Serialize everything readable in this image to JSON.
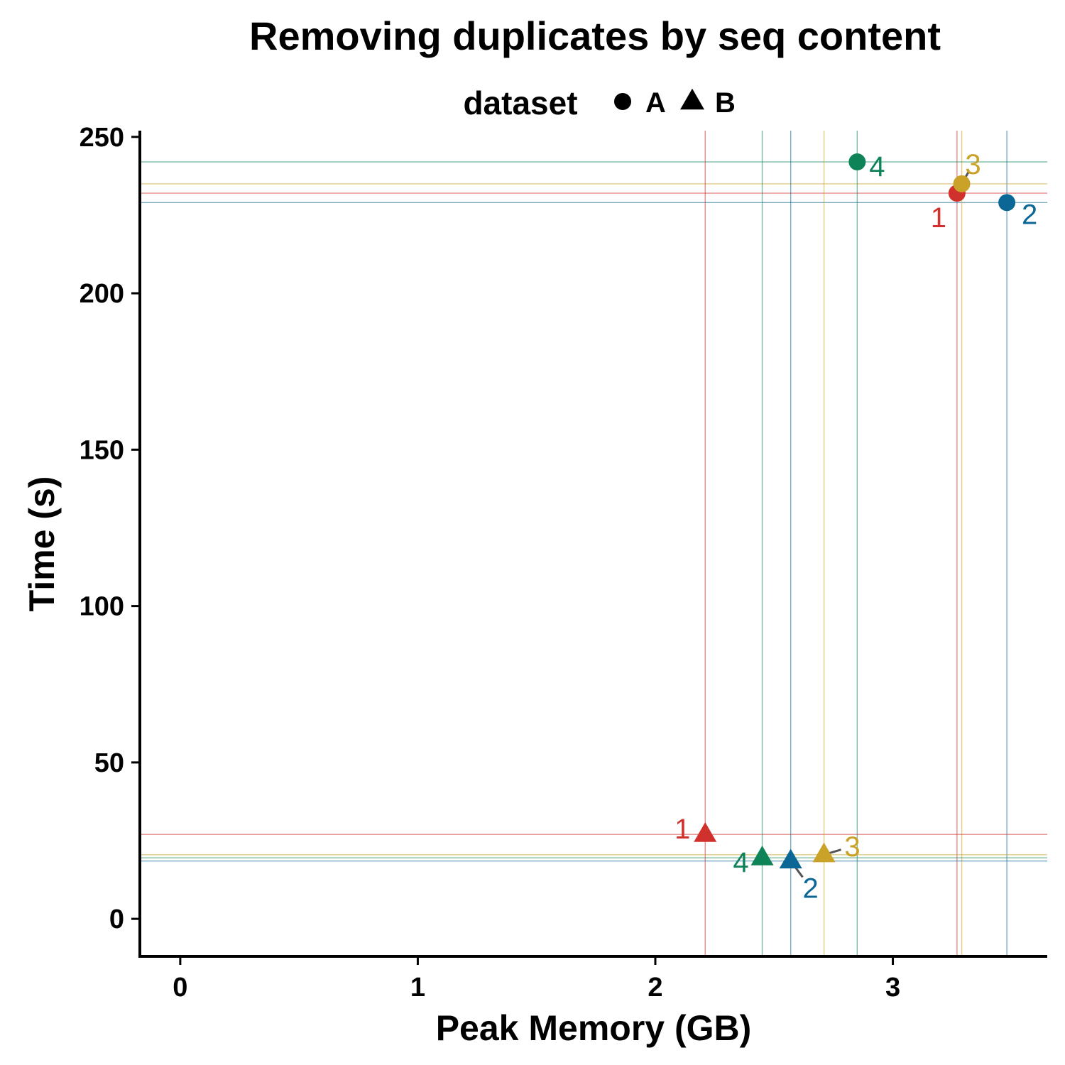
{
  "chart_data": {
    "type": "scatter",
    "title": "Removing duplicates by seq content",
    "xlabel": "Peak Memory (GB)",
    "ylabel": "Time (s)",
    "xlim": [
      -0.17,
      3.65
    ],
    "ylim": [
      -12,
      252
    ],
    "x_ticks": [
      0,
      1,
      2,
      3
    ],
    "y_ticks": [
      0,
      50,
      100,
      150,
      200,
      250
    ],
    "grid": false,
    "legend": {
      "title": "dataset",
      "placement": "top",
      "entries": [
        {
          "label": "A",
          "shape": "circle"
        },
        {
          "label": "B",
          "shape": "triangle"
        }
      ]
    },
    "label_colors": {
      "1": "#d0312d",
      "2": "#0a6796",
      "3": "#c9a227",
      "4": "#0e8358"
    },
    "points": [
      {
        "dataset": "A",
        "label": "1",
        "x": 3.27,
        "y": 232
      },
      {
        "dataset": "A",
        "label": "2",
        "x": 3.48,
        "y": 229
      },
      {
        "dataset": "A",
        "label": "3",
        "x": 3.29,
        "y": 235
      },
      {
        "dataset": "A",
        "label": "4",
        "x": 2.85,
        "y": 242
      },
      {
        "dataset": "B",
        "label": "1",
        "x": 2.21,
        "y": 27
      },
      {
        "dataset": "B",
        "label": "2",
        "x": 2.57,
        "y": 18.5
      },
      {
        "dataset": "B",
        "label": "3",
        "x": 2.71,
        "y": 20.5
      },
      {
        "dataset": "B",
        "label": "4",
        "x": 2.45,
        "y": 19.5
      }
    ]
  }
}
